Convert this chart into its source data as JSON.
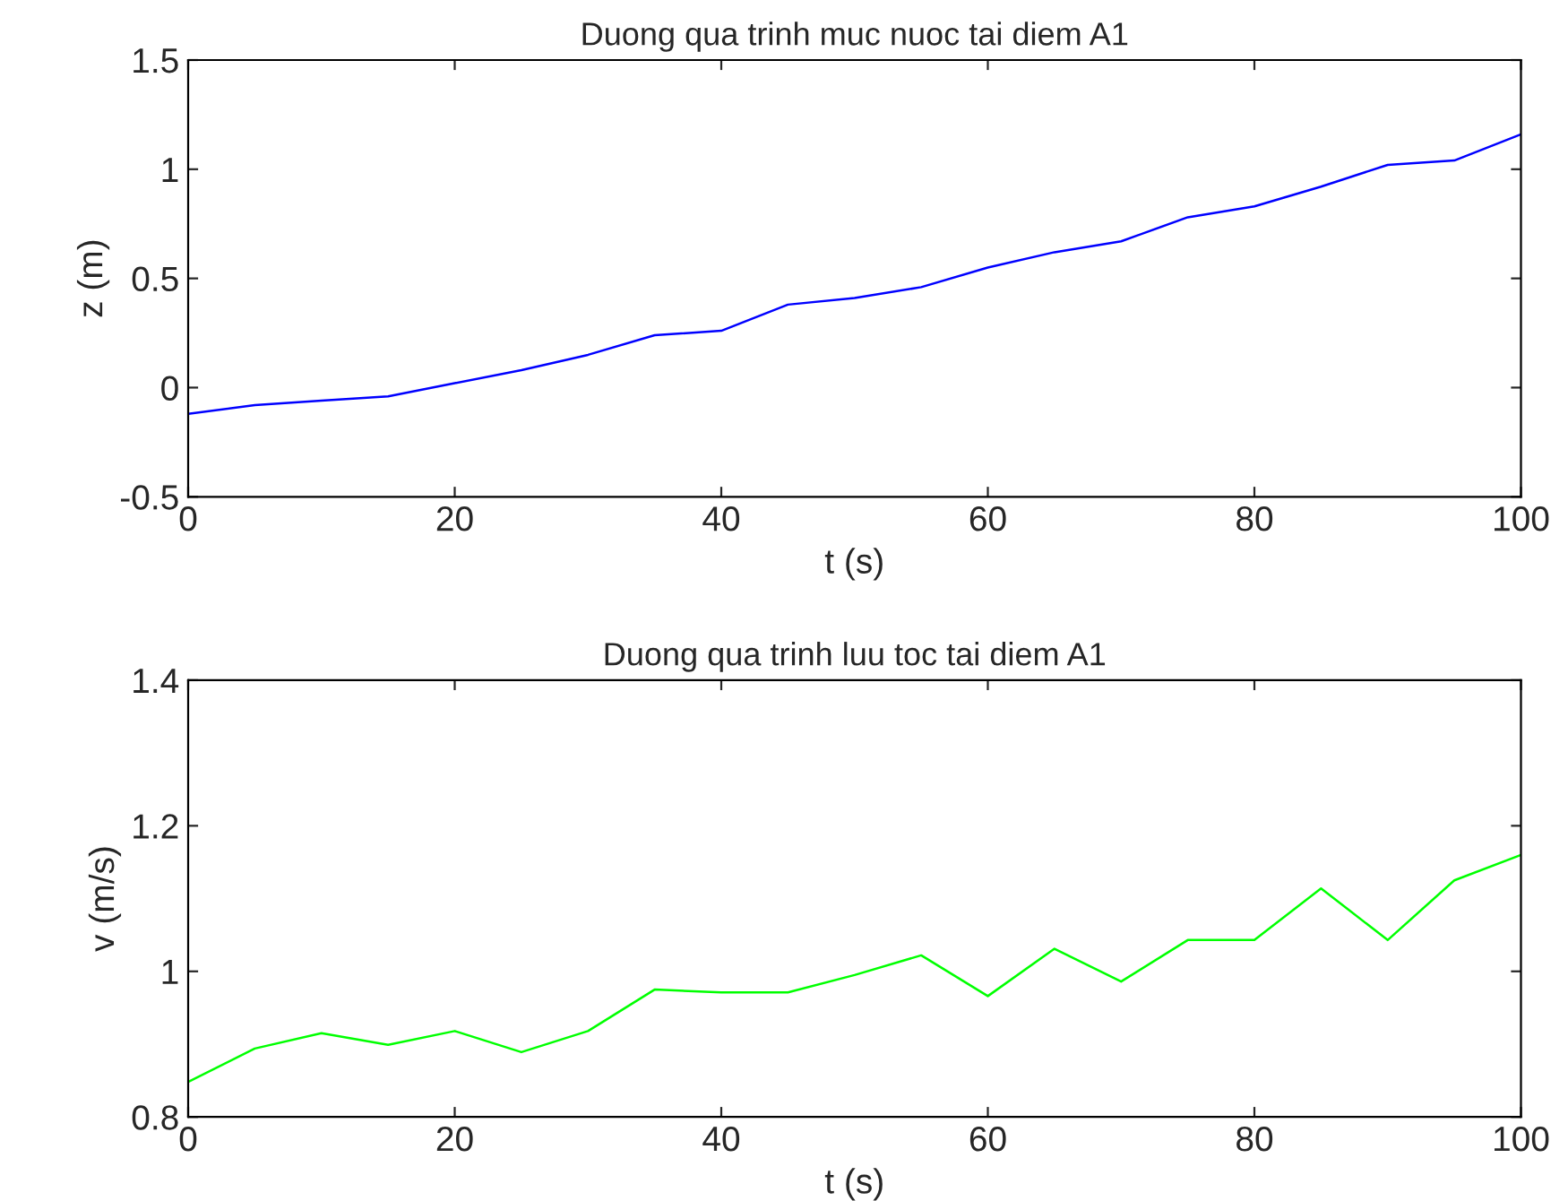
{
  "chart_data": [
    {
      "type": "line",
      "title": "Duong qua trinh muc nuoc tai diem A1",
      "xlabel": "t (s)",
      "ylabel": "z (m)",
      "x": [
        0,
        5,
        10,
        15,
        20,
        25,
        30,
        35,
        40,
        45,
        50,
        55,
        60,
        65,
        70,
        75,
        80,
        85,
        90,
        95,
        100
      ],
      "series": [
        {
          "color": "#0000ff",
          "values": [
            -0.12,
            -0.08,
            -0.06,
            -0.04,
            0.02,
            0.08,
            0.15,
            0.24,
            0.26,
            0.38,
            0.41,
            0.46,
            0.55,
            0.62,
            0.67,
            0.78,
            0.83,
            0.92,
            1.02,
            1.04,
            1.16
          ]
        }
      ],
      "xlim": [
        0,
        100
      ],
      "xticks": [
        0,
        20,
        40,
        60,
        80,
        100
      ],
      "ylim": [
        -0.5,
        1.5
      ],
      "yticks": [
        -0.5,
        0,
        0.5,
        1,
        1.5
      ]
    },
    {
      "type": "line",
      "title": "Duong qua trinh luu toc tai diem A1",
      "xlabel": "t (s)",
      "ylabel": "v (m/s)",
      "x": [
        0,
        5,
        10,
        15,
        20,
        25,
        30,
        35,
        40,
        45,
        50,
        55,
        60,
        65,
        70,
        75,
        80,
        85,
        90,
        95,
        100
      ],
      "series": [
        {
          "color": "#00ff00",
          "values": [
            0.848,
            0.894,
            0.915,
            0.899,
            0.918,
            0.889,
            0.918,
            0.975,
            0.971,
            0.971,
            0.995,
            1.022,
            0.966,
            1.031,
            0.986,
            1.043,
            1.043,
            1.114,
            1.043,
            1.125,
            1.16
          ]
        }
      ],
      "xlim": [
        0,
        100
      ],
      "xticks": [
        0,
        20,
        40,
        60,
        80,
        100
      ],
      "ylim": [
        0.8,
        1.4
      ],
      "yticks": [
        0.8,
        1,
        1.2,
        1.4
      ]
    }
  ]
}
